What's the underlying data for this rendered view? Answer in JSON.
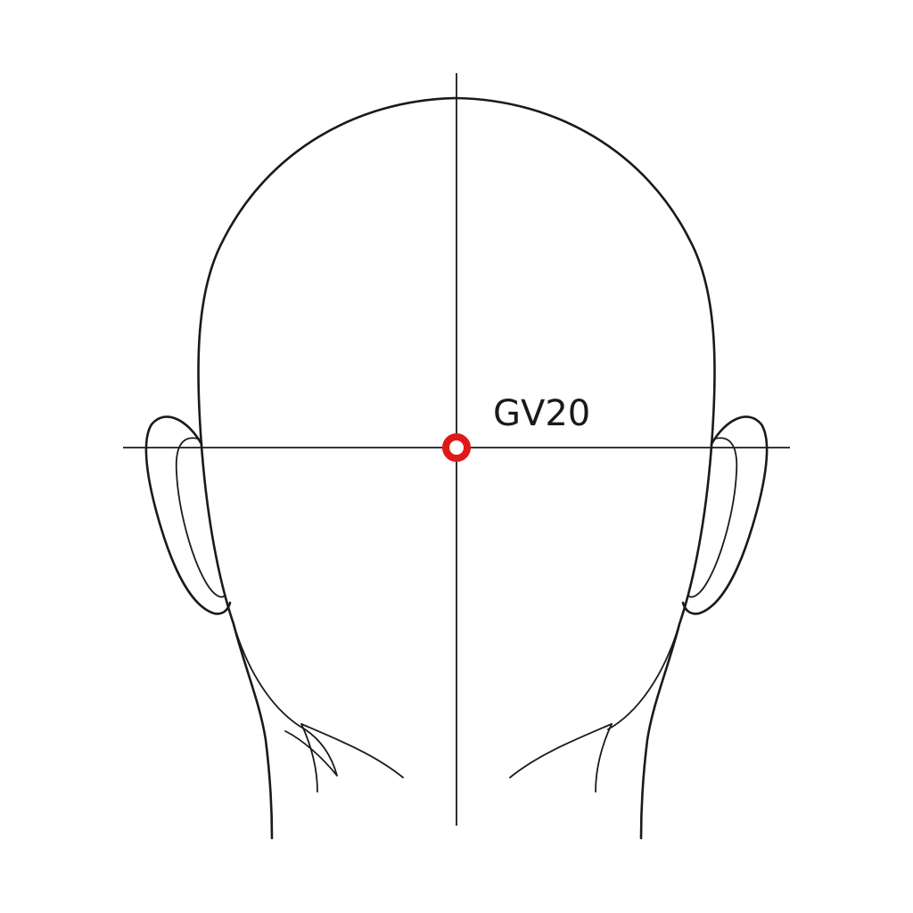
{
  "points": [
    {
      "label": "GV20",
      "marker_color": "#e01818"
    }
  ],
  "colors": {
    "line": "#1a1a1a",
    "background": "#ffffff"
  }
}
